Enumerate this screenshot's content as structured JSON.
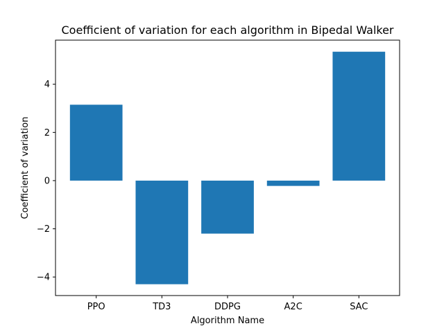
{
  "chart_data": {
    "type": "bar",
    "title": "Coefficient of variation for each algorithm in Bipedal Walker",
    "xlabel": "Algorithm Name",
    "ylabel": "Coefficient of variation",
    "categories": [
      "PPO",
      "TD3",
      "DDPG",
      "A2C",
      "SAC"
    ],
    "values": [
      3.15,
      -4.3,
      -2.2,
      -0.22,
      5.35
    ],
    "ylim": [
      -4.77,
      5.83
    ],
    "yticks": [
      -4,
      -2,
      0,
      2,
      4
    ],
    "ytick_labels": [
      "−4",
      "−2",
      "0",
      "2",
      "4"
    ],
    "grid": false,
    "legend": "none",
    "bar_color": "#1f77b4",
    "axis_color": "#000000"
  }
}
